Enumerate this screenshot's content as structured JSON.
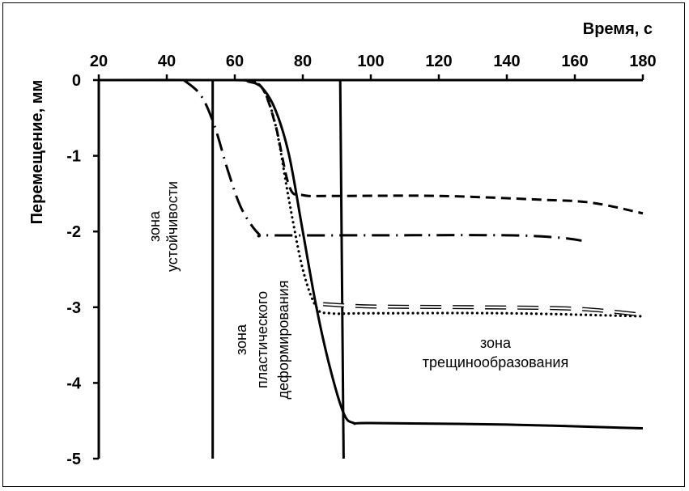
{
  "chart_data": {
    "type": "line",
    "title": "",
    "xlabel": "Время, с",
    "ylabel": "Перемещение, мм",
    "xlim": [
      20,
      180
    ],
    "ylim": [
      -5,
      0
    ],
    "x_position": "top",
    "x_ticks": [
      20,
      40,
      60,
      80,
      100,
      120,
      140,
      160,
      180
    ],
    "y_ticks": [
      0,
      -1,
      -2,
      -3,
      -4,
      -5
    ],
    "y_tick_labels": [
      "0",
      "-1",
      "-2",
      "-3",
      "-4",
      "-5"
    ],
    "grid": false,
    "series": [
      {
        "name": "solid",
        "style": "solid",
        "points": [
          [
            20,
            0
          ],
          [
            60,
            0
          ],
          [
            64,
            -0.02
          ],
          [
            68,
            -0.1
          ],
          [
            72,
            -0.4
          ],
          [
            76,
            -1.0
          ],
          [
            80,
            -2.0
          ],
          [
            84,
            -3.0
          ],
          [
            88,
            -3.8
          ],
          [
            92,
            -4.4
          ],
          [
            95,
            -4.53
          ],
          [
            100,
            -4.53
          ],
          [
            140,
            -4.55
          ],
          [
            180,
            -4.6
          ]
        ]
      },
      {
        "name": "dotted",
        "style": "dotted",
        "points": [
          [
            63,
            0
          ],
          [
            68,
            -0.1
          ],
          [
            72,
            -0.6
          ],
          [
            76,
            -1.6
          ],
          [
            80,
            -2.5
          ],
          [
            84,
            -3.0
          ],
          [
            88,
            -3.08
          ],
          [
            100,
            -3.08
          ],
          [
            140,
            -3.08
          ],
          [
            180,
            -3.12
          ]
        ]
      },
      {
        "name": "dashed",
        "style": "dashed",
        "points": [
          [
            63,
            0
          ],
          [
            68,
            -0.1
          ],
          [
            72,
            -0.6
          ],
          [
            76,
            -1.4
          ],
          [
            80,
            -1.52
          ],
          [
            90,
            -1.53
          ],
          [
            120,
            -1.53
          ],
          [
            150,
            -1.58
          ],
          [
            165,
            -1.62
          ],
          [
            180,
            -1.76
          ]
        ]
      },
      {
        "name": "dash-dot",
        "style": "dashdot",
        "points": [
          [
            45,
            0
          ],
          [
            50,
            -0.2
          ],
          [
            54,
            -0.6
          ],
          [
            58,
            -1.2
          ],
          [
            62,
            -1.7
          ],
          [
            67,
            -2.03
          ],
          [
            70,
            -2.05
          ],
          [
            100,
            -2.05
          ],
          [
            140,
            -2.05
          ],
          [
            155,
            -2.08
          ],
          [
            162,
            -2.12
          ]
        ]
      },
      {
        "name": "double-dashed",
        "style": "doubledash",
        "points": [
          [
            86,
            -2.96
          ],
          [
            100,
            -2.99
          ],
          [
            130,
            -3.0
          ],
          [
            160,
            -3.02
          ],
          [
            180,
            -3.1
          ]
        ]
      }
    ],
    "boundaries": [
      {
        "name": "stability-boundary",
        "x_top": 53.5,
        "x_bottom": 53.5
      },
      {
        "name": "plastic-boundary",
        "x_top": 91,
        "x_bottom": 92
      }
    ],
    "annotations": [
      {
        "name": "zone-stability",
        "lines": [
          "зона",
          "устойчивости"
        ]
      },
      {
        "name": "zone-plastic",
        "lines": [
          "зона",
          "пластического",
          "деформирования"
        ]
      },
      {
        "name": "zone-cracking",
        "lines": [
          "зона",
          "трещинообразования"
        ]
      }
    ]
  }
}
